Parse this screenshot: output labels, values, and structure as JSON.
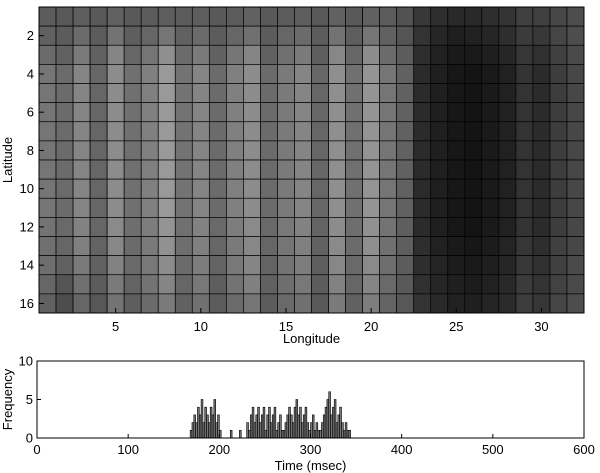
{
  "chart_data": [
    {
      "type": "heatmap",
      "xlabel": "Longitude",
      "ylabel": "Latitude",
      "x_ticks": [
        5,
        10,
        15,
        20,
        25,
        30
      ],
      "y_ticks": [
        2,
        4,
        6,
        8,
        10,
        12,
        14,
        16
      ],
      "xlim": [
        0.5,
        32.5
      ],
      "ylim": [
        16.5,
        0.5
      ],
      "grid": true,
      "colormap": "gray",
      "column_levels": [
        0.46,
        0.42,
        0.52,
        0.4,
        0.55,
        0.44,
        0.5,
        0.6,
        0.45,
        0.52,
        0.42,
        0.5,
        0.55,
        0.42,
        0.48,
        0.52,
        0.4,
        0.56,
        0.44,
        0.58,
        0.46,
        0.4,
        0.2,
        0.16,
        0.12,
        0.1,
        0.12,
        0.14,
        0.22,
        0.18,
        0.24,
        0.28
      ],
      "values": [
        [
          0.36,
          0.35,
          0.37,
          0.35,
          0.38,
          0.35,
          0.36,
          0.37,
          0.36,
          0.37,
          0.35,
          0.36,
          0.38,
          0.35,
          0.36,
          0.37,
          0.35,
          0.38,
          0.35,
          0.38,
          0.36,
          0.32,
          0.22,
          0.18,
          0.16,
          0.16,
          0.18,
          0.2,
          0.25,
          0.25,
          0.28,
          0.3
        ],
        [
          0.38,
          0.36,
          0.42,
          0.36,
          0.45,
          0.37,
          0.4,
          0.46,
          0.38,
          0.42,
          0.36,
          0.4,
          0.44,
          0.36,
          0.4,
          0.42,
          0.36,
          0.45,
          0.37,
          0.46,
          0.38,
          0.33,
          0.2,
          0.15,
          0.12,
          0.13,
          0.15,
          0.18,
          0.23,
          0.22,
          0.27,
          0.3
        ],
        [
          0.42,
          0.38,
          0.48,
          0.38,
          0.52,
          0.4,
          0.46,
          0.56,
          0.42,
          0.48,
          0.38,
          0.46,
          0.52,
          0.38,
          0.44,
          0.48,
          0.37,
          0.53,
          0.4,
          0.55,
          0.42,
          0.36,
          0.18,
          0.13,
          0.1,
          0.1,
          0.12,
          0.15,
          0.21,
          0.19,
          0.25,
          0.29
        ],
        [
          0.46,
          0.42,
          0.52,
          0.4,
          0.55,
          0.44,
          0.5,
          0.6,
          0.45,
          0.52,
          0.42,
          0.5,
          0.55,
          0.42,
          0.48,
          0.52,
          0.4,
          0.56,
          0.44,
          0.58,
          0.46,
          0.38,
          0.17,
          0.12,
          0.09,
          0.08,
          0.1,
          0.13,
          0.2,
          0.17,
          0.24,
          0.28
        ],
        [
          0.46,
          0.42,
          0.52,
          0.4,
          0.55,
          0.44,
          0.5,
          0.6,
          0.45,
          0.52,
          0.42,
          0.5,
          0.55,
          0.42,
          0.48,
          0.52,
          0.4,
          0.56,
          0.44,
          0.58,
          0.46,
          0.38,
          0.17,
          0.12,
          0.09,
          0.08,
          0.1,
          0.13,
          0.2,
          0.17,
          0.24,
          0.28
        ],
        [
          0.46,
          0.42,
          0.52,
          0.4,
          0.55,
          0.44,
          0.5,
          0.6,
          0.45,
          0.52,
          0.42,
          0.5,
          0.55,
          0.42,
          0.48,
          0.52,
          0.4,
          0.56,
          0.44,
          0.58,
          0.46,
          0.38,
          0.17,
          0.12,
          0.09,
          0.08,
          0.1,
          0.13,
          0.2,
          0.17,
          0.24,
          0.28
        ],
        [
          0.46,
          0.42,
          0.52,
          0.4,
          0.55,
          0.44,
          0.5,
          0.6,
          0.45,
          0.52,
          0.42,
          0.5,
          0.55,
          0.42,
          0.48,
          0.52,
          0.4,
          0.56,
          0.44,
          0.58,
          0.46,
          0.38,
          0.17,
          0.12,
          0.09,
          0.08,
          0.1,
          0.13,
          0.2,
          0.17,
          0.24,
          0.28
        ],
        [
          0.46,
          0.42,
          0.52,
          0.4,
          0.55,
          0.44,
          0.5,
          0.6,
          0.45,
          0.52,
          0.42,
          0.5,
          0.55,
          0.42,
          0.48,
          0.52,
          0.4,
          0.56,
          0.44,
          0.58,
          0.46,
          0.38,
          0.17,
          0.12,
          0.09,
          0.08,
          0.1,
          0.13,
          0.2,
          0.17,
          0.24,
          0.28
        ],
        [
          0.46,
          0.42,
          0.52,
          0.4,
          0.55,
          0.44,
          0.5,
          0.6,
          0.45,
          0.52,
          0.42,
          0.5,
          0.55,
          0.42,
          0.48,
          0.52,
          0.4,
          0.56,
          0.44,
          0.58,
          0.46,
          0.38,
          0.17,
          0.12,
          0.09,
          0.08,
          0.1,
          0.13,
          0.2,
          0.17,
          0.24,
          0.28
        ],
        [
          0.46,
          0.42,
          0.52,
          0.4,
          0.55,
          0.44,
          0.5,
          0.6,
          0.45,
          0.52,
          0.42,
          0.5,
          0.55,
          0.42,
          0.48,
          0.52,
          0.4,
          0.56,
          0.44,
          0.58,
          0.46,
          0.38,
          0.17,
          0.12,
          0.09,
          0.08,
          0.1,
          0.13,
          0.2,
          0.17,
          0.24,
          0.28
        ],
        [
          0.46,
          0.42,
          0.52,
          0.4,
          0.55,
          0.44,
          0.5,
          0.6,
          0.45,
          0.52,
          0.42,
          0.5,
          0.55,
          0.42,
          0.48,
          0.52,
          0.4,
          0.56,
          0.44,
          0.58,
          0.46,
          0.38,
          0.17,
          0.12,
          0.09,
          0.08,
          0.1,
          0.13,
          0.2,
          0.17,
          0.24,
          0.28
        ],
        [
          0.45,
          0.41,
          0.51,
          0.4,
          0.54,
          0.43,
          0.49,
          0.58,
          0.44,
          0.51,
          0.41,
          0.49,
          0.54,
          0.41,
          0.47,
          0.51,
          0.39,
          0.55,
          0.43,
          0.57,
          0.45,
          0.37,
          0.17,
          0.12,
          0.09,
          0.08,
          0.1,
          0.13,
          0.2,
          0.17,
          0.24,
          0.28
        ],
        [
          0.44,
          0.4,
          0.5,
          0.39,
          0.53,
          0.42,
          0.48,
          0.57,
          0.43,
          0.5,
          0.4,
          0.48,
          0.53,
          0.4,
          0.46,
          0.5,
          0.38,
          0.54,
          0.42,
          0.56,
          0.44,
          0.37,
          0.18,
          0.13,
          0.1,
          0.09,
          0.11,
          0.14,
          0.21,
          0.18,
          0.25,
          0.28
        ],
        [
          0.43,
          0.38,
          0.48,
          0.38,
          0.51,
          0.41,
          0.47,
          0.55,
          0.42,
          0.49,
          0.39,
          0.47,
          0.52,
          0.39,
          0.45,
          0.49,
          0.37,
          0.53,
          0.41,
          0.54,
          0.43,
          0.36,
          0.18,
          0.14,
          0.11,
          0.1,
          0.12,
          0.15,
          0.22,
          0.19,
          0.25,
          0.29
        ],
        [
          0.4,
          0.33,
          0.44,
          0.36,
          0.48,
          0.39,
          0.45,
          0.52,
          0.4,
          0.47,
          0.37,
          0.45,
          0.5,
          0.38,
          0.43,
          0.47,
          0.36,
          0.51,
          0.4,
          0.52,
          0.41,
          0.35,
          0.19,
          0.15,
          0.12,
          0.11,
          0.13,
          0.16,
          0.23,
          0.2,
          0.26,
          0.29
        ],
        [
          0.38,
          0.3,
          0.4,
          0.34,
          0.45,
          0.37,
          0.42,
          0.48,
          0.38,
          0.44,
          0.36,
          0.42,
          0.46,
          0.36,
          0.41,
          0.44,
          0.35,
          0.48,
          0.38,
          0.49,
          0.39,
          0.34,
          0.2,
          0.16,
          0.13,
          0.12,
          0.14,
          0.17,
          0.24,
          0.21,
          0.27,
          0.3
        ]
      ]
    },
    {
      "type": "bar",
      "xlabel": "Time (msec)",
      "ylabel": "Frequency",
      "xlim": [
        0,
        600
      ],
      "ylim": [
        0,
        10
      ],
      "x_ticks": [
        0,
        100,
        200,
        300,
        400,
        500,
        600
      ],
      "y_ticks": [
        0,
        5,
        10
      ],
      "bin_width": 2,
      "x": [
        168,
        170,
        172,
        174,
        176,
        178,
        180,
        182,
        184,
        186,
        188,
        190,
        192,
        194,
        196,
        198,
        200,
        212,
        222,
        230,
        232,
        234,
        236,
        238,
        240,
        242,
        244,
        246,
        248,
        250,
        252,
        254,
        256,
        258,
        260,
        262,
        264,
        266,
        268,
        270,
        272,
        274,
        276,
        278,
        280,
        282,
        284,
        286,
        288,
        290,
        292,
        294,
        296,
        298,
        300,
        302,
        304,
        306,
        308,
        310,
        312,
        314,
        316,
        318,
        320,
        322,
        324,
        326,
        328,
        330,
        332,
        334,
        336,
        338,
        340,
        342
      ],
      "values": [
        1,
        2,
        3,
        2,
        4,
        3,
        5,
        2,
        4,
        3,
        2,
        4,
        3,
        5,
        2,
        3,
        1,
        1,
        1,
        2,
        1,
        3,
        4,
        2,
        3,
        4,
        2,
        3,
        4,
        1,
        3,
        4,
        2,
        3,
        4,
        1,
        2,
        3,
        1,
        1,
        2,
        3,
        4,
        3,
        2,
        4,
        5,
        3,
        4,
        2,
        3,
        4,
        2,
        1,
        2,
        3,
        1,
        2,
        1,
        1,
        2,
        3,
        4,
        5,
        6,
        3,
        4,
        5,
        2,
        3,
        4,
        2,
        1,
        2,
        1,
        1
      ]
    }
  ]
}
